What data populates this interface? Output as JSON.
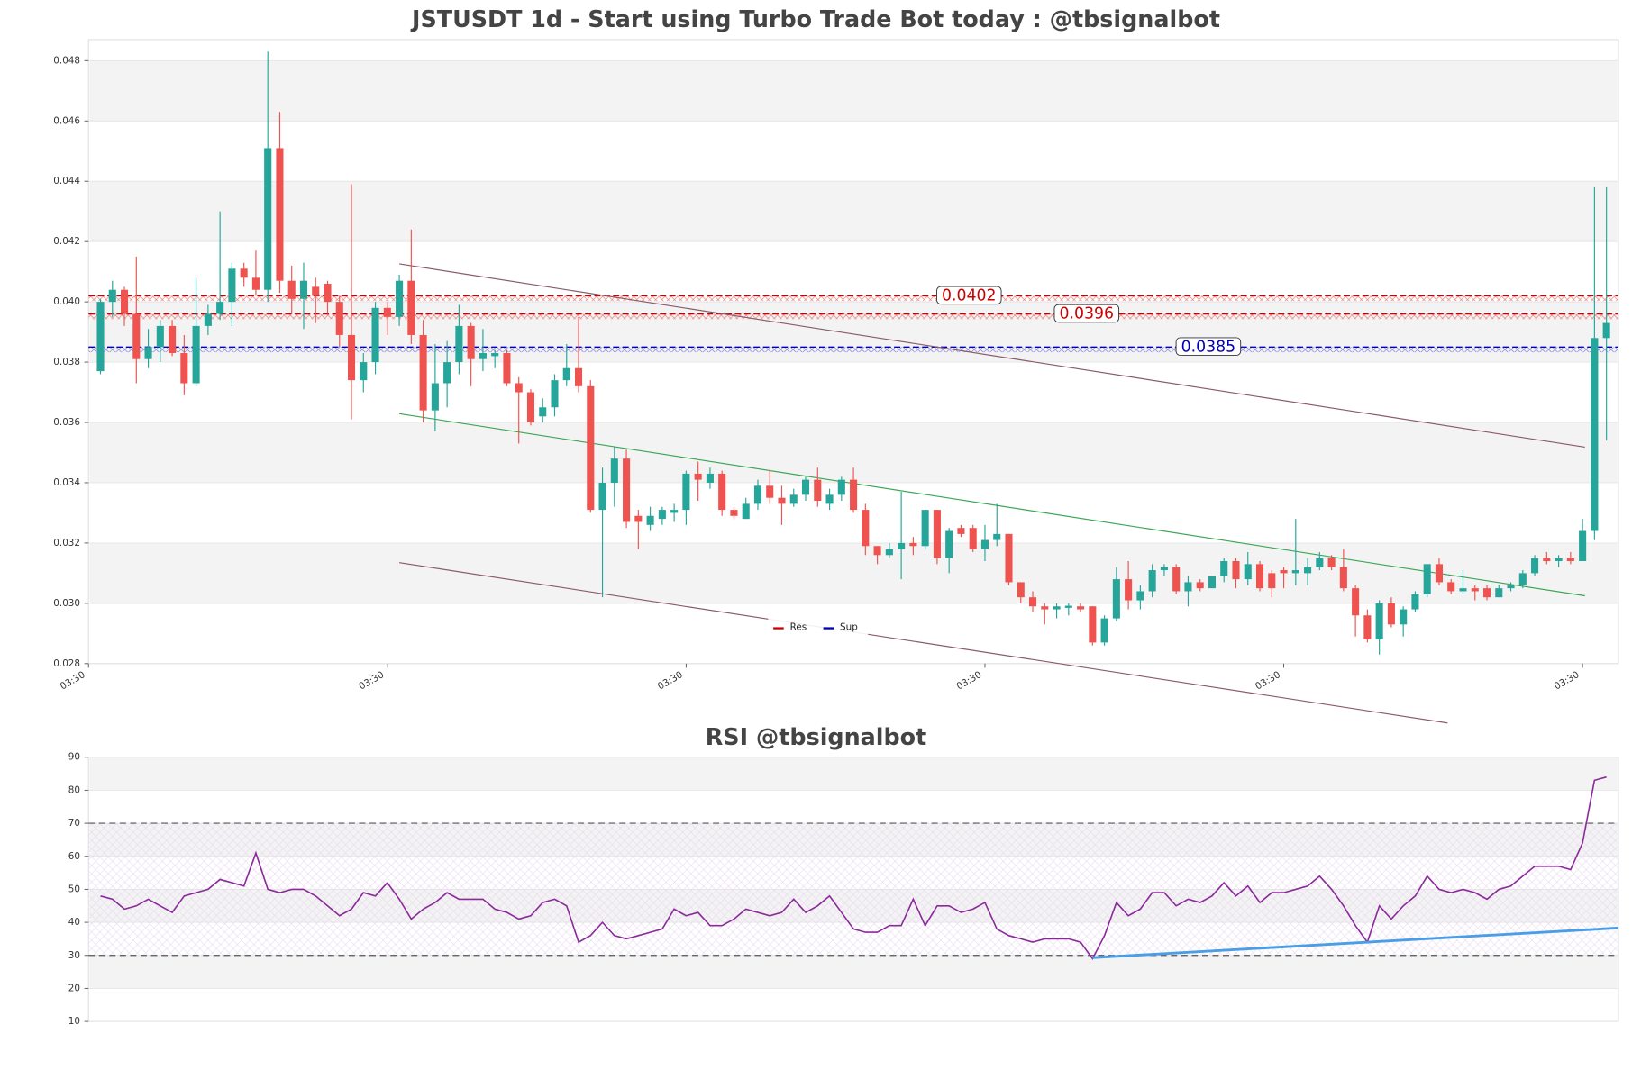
{
  "chart_data": [
    {
      "type": "candlestick",
      "title": "JSTUSDT 1d - Start using Turbo Trade Bot today : @tbsignalbot",
      "colors": {
        "up": "#26a69a",
        "down": "#ef5350"
      },
      "open": [
        0.0377,
        0.04,
        0.0404,
        0.0396,
        0.0381,
        0.0385,
        0.0392,
        0.0383,
        0.0373,
        0.0392,
        0.0396,
        0.04,
        0.0411,
        0.0408,
        0.0404,
        0.0451,
        0.0407,
        0.0401,
        0.0405,
        0.0406,
        0.04,
        0.0389,
        0.0374,
        0.038,
        0.0398,
        0.0395,
        0.0407,
        0.0389,
        0.0364,
        0.0373,
        0.038,
        0.0392,
        0.0381,
        0.0382,
        0.0383,
        0.0373,
        0.037,
        0.0362,
        0.0365,
        0.0374,
        0.0378,
        0.0372,
        0.0331,
        0.034,
        0.0348,
        0.0329,
        0.0326,
        0.0328,
        0.033,
        0.0331,
        0.0343,
        0.034,
        0.0343,
        0.0331,
        0.0328,
        0.0333,
        0.0339,
        0.0335,
        0.0333,
        0.0336,
        0.0341,
        0.0333,
        0.0336,
        0.0341,
        0.0331,
        0.0319,
        0.0316,
        0.0318,
        0.032,
        0.0319,
        0.0331,
        0.0315,
        0.0325,
        0.0325,
        0.0318,
        0.0321,
        0.0323,
        0.0307,
        0.0302,
        0.0299,
        0.0298,
        0.02985,
        0.0299,
        0.0299,
        0.0287,
        0.0295,
        0.0308,
        0.0301,
        0.0304,
        0.0311,
        0.0312,
        0.0304,
        0.0307,
        0.0305,
        0.0309,
        0.0314,
        0.0308,
        0.0313,
        0.031,
        0.0311,
        0.031,
        0.031,
        0.0312,
        0.0315,
        0.0312,
        0.0305,
        0.0296,
        0.0288,
        0.03,
        0.0293,
        0.0298,
        0.0303,
        0.0313,
        0.0307,
        0.0304,
        0.0305,
        0.0305,
        0.0302,
        0.0305,
        0.0306,
        0.031,
        0.0315,
        0.0314,
        0.0315,
        0.0314,
        0.0324,
        0.0388
      ],
      "high": [
        0.0401,
        0.0407,
        0.0405,
        0.0415,
        0.0391,
        0.0394,
        0.0394,
        0.0389,
        0.0408,
        0.0399,
        0.043,
        0.0413,
        0.0413,
        0.0417,
        0.0483,
        0.0463,
        0.0412,
        0.0413,
        0.0408,
        0.0407,
        0.0402,
        0.0439,
        0.0383,
        0.04,
        0.04,
        0.0409,
        0.0424,
        0.0394,
        0.0386,
        0.0387,
        0.0399,
        0.0393,
        0.0391,
        0.0384,
        0.0384,
        0.0375,
        0.0371,
        0.0368,
        0.0376,
        0.0386,
        0.0395,
        0.0374,
        0.0345,
        0.0352,
        0.0351,
        0.0331,
        0.0332,
        0.0332,
        0.0333,
        0.0344,
        0.0347,
        0.0345,
        0.0344,
        0.0332,
        0.0335,
        0.0341,
        0.0344,
        0.0339,
        0.0338,
        0.0342,
        0.0345,
        0.0338,
        0.0342,
        0.0345,
        0.0333,
        0.0319,
        0.032,
        0.0337,
        0.0322,
        0.0331,
        0.0331,
        0.0325,
        0.0326,
        0.0326,
        0.0326,
        0.0333,
        0.0323,
        0.0307,
        0.0304,
        0.03,
        0.03,
        0.03,
        0.03,
        0.0299,
        0.0296,
        0.0312,
        0.0314,
        0.0306,
        0.0313,
        0.0313,
        0.0313,
        0.0309,
        0.0308,
        0.0309,
        0.0315,
        0.0315,
        0.0317,
        0.0314,
        0.0311,
        0.0312,
        0.0328,
        0.0315,
        0.0317,
        0.0316,
        0.0318,
        0.0306,
        0.0298,
        0.0301,
        0.0302,
        0.0299,
        0.0304,
        0.0313,
        0.0315,
        0.0308,
        0.0311,
        0.0306,
        0.0306,
        0.0306,
        0.0307,
        0.0311,
        0.0316,
        0.0317,
        0.0316,
        0.0317,
        0.0328,
        0.0438,
        0.0438
      ],
      "low": [
        0.0376,
        0.0395,
        0.0392,
        0.0373,
        0.0378,
        0.038,
        0.0382,
        0.0369,
        0.0372,
        0.0389,
        0.0394,
        0.0392,
        0.0405,
        0.0402,
        0.04,
        0.0403,
        0.0396,
        0.0391,
        0.0393,
        0.0396,
        0.0385,
        0.0361,
        0.037,
        0.0376,
        0.0389,
        0.0392,
        0.0386,
        0.036,
        0.0357,
        0.0365,
        0.0376,
        0.0372,
        0.0377,
        0.0378,
        0.0372,
        0.0353,
        0.0359,
        0.036,
        0.0362,
        0.0372,
        0.037,
        0.033,
        0.0302,
        0.0332,
        0.0325,
        0.0318,
        0.0324,
        0.0326,
        0.0327,
        0.0326,
        0.0334,
        0.0338,
        0.0329,
        0.0328,
        0.0328,
        0.0331,
        0.0333,
        0.0326,
        0.0332,
        0.0334,
        0.0332,
        0.0331,
        0.0334,
        0.033,
        0.0316,
        0.0313,
        0.0315,
        0.0308,
        0.0316,
        0.0318,
        0.0313,
        0.031,
        0.0322,
        0.0317,
        0.0314,
        0.0319,
        0.0306,
        0.03,
        0.0297,
        0.0293,
        0.0295,
        0.0296,
        0.0297,
        0.0286,
        0.0286,
        0.0294,
        0.0298,
        0.0298,
        0.0302,
        0.0309,
        0.0303,
        0.0299,
        0.0304,
        0.0305,
        0.0307,
        0.0305,
        0.0306,
        0.0304,
        0.0302,
        0.0305,
        0.0306,
        0.0306,
        0.0311,
        0.0311,
        0.0304,
        0.0289,
        0.0287,
        0.0283,
        0.0292,
        0.0289,
        0.0297,
        0.0302,
        0.0306,
        0.0303,
        0.0303,
        0.0301,
        0.0301,
        0.0302,
        0.0304,
        0.0305,
        0.0309,
        0.0313,
        0.0312,
        0.0313,
        0.0314,
        0.0321,
        0.0354
      ],
      "close": [
        0.04,
        0.0404,
        0.0396,
        0.0381,
        0.0385,
        0.0392,
        0.0383,
        0.0373,
        0.0392,
        0.0396,
        0.04,
        0.0411,
        0.0408,
        0.0404,
        0.0451,
        0.0407,
        0.0401,
        0.0407,
        0.0402,
        0.04,
        0.0389,
        0.0374,
        0.038,
        0.0398,
        0.0395,
        0.0407,
        0.0389,
        0.0364,
        0.0373,
        0.038,
        0.0392,
        0.0381,
        0.0383,
        0.0383,
        0.0373,
        0.037,
        0.036,
        0.0365,
        0.0374,
        0.0378,
        0.0372,
        0.0331,
        0.034,
        0.0348,
        0.0327,
        0.0327,
        0.0329,
        0.0331,
        0.0331,
        0.0343,
        0.0341,
        0.0343,
        0.0331,
        0.0329,
        0.0333,
        0.0339,
        0.0335,
        0.0333,
        0.0336,
        0.0341,
        0.0334,
        0.0336,
        0.0341,
        0.0331,
        0.0319,
        0.0316,
        0.0318,
        0.032,
        0.0319,
        0.0331,
        0.0315,
        0.0324,
        0.0323,
        0.0318,
        0.0321,
        0.0323,
        0.0307,
        0.0302,
        0.0299,
        0.0298,
        0.0299,
        0.02992,
        0.0298,
        0.0287,
        0.0295,
        0.0308,
        0.0301,
        0.0304,
        0.0311,
        0.0312,
        0.0304,
        0.0307,
        0.0305,
        0.0309,
        0.0314,
        0.0308,
        0.0313,
        0.0305,
        0.0305,
        0.031,
        0.0311,
        0.0312,
        0.0315,
        0.0312,
        0.0305,
        0.0296,
        0.0288,
        0.03,
        0.0293,
        0.0298,
        0.0303,
        0.0313,
        0.0307,
        0.0304,
        0.0305,
        0.0304,
        0.0302,
        0.0305,
        0.0306,
        0.031,
        0.0315,
        0.0314,
        0.0315,
        0.0314,
        0.0324,
        0.0388,
        0.0393
      ],
      "xlim": [
        -1,
        127
      ],
      "xticks": [
        {
          "value": -1,
          "label": "03:30"
        },
        {
          "value": 24,
          "label": "03:30"
        },
        {
          "value": 49,
          "label": "03:30"
        },
        {
          "value": 74,
          "label": "03:30"
        },
        {
          "value": 99,
          "label": "03:30"
        },
        {
          "value": 124,
          "label": "03:30"
        }
      ],
      "ylim": [
        0.028,
        0.0487
      ],
      "yticks": [
        0.028,
        {
          "value": 0.03,
          "label": "0.030"
        },
        0.032,
        0.034,
        0.036,
        0.038,
        {
          "value": 0.04,
          "label": "0.040"
        },
        0.042,
        0.044,
        0.046,
        0.048
      ],
      "series": [
        {
          "name": "Res",
          "color": "#cc0000",
          "values": [
            0.0402,
            0.0396
          ]
        },
        {
          "name": "Sup",
          "color": "#0000bb",
          "values": [
            0.0385
          ]
        }
      ],
      "legend": "lower center",
      "trendlines": [
        {
          "color": "#8b5a6a",
          "x": [
            25,
            124.2
          ],
          "y": [
            0.04126,
            0.03518
          ]
        },
        {
          "color": "#3aa655",
          "x": [
            25,
            124.2
          ],
          "y": [
            0.03629,
            0.03025
          ]
        },
        {
          "color": "#8b5a6a",
          "x": [
            25,
            112.7
          ],
          "y": [
            0.03135,
            0.02603
          ]
        }
      ]
    },
    {
      "type": "line",
      "title": "RSI @tbsignalbot",
      "color": "#8b2a9b",
      "values": [
        48,
        47,
        44,
        45,
        47,
        45,
        43,
        48,
        49,
        50,
        53,
        52,
        51,
        61,
        50,
        49,
        50,
        50,
        48,
        45,
        42,
        44,
        49,
        48,
        52,
        47,
        41,
        44,
        46,
        49,
        47,
        47,
        47,
        44,
        43,
        41,
        42,
        46,
        47,
        45,
        34,
        36,
        40,
        36,
        35,
        36,
        37,
        38,
        44,
        42,
        43,
        39,
        39,
        41,
        44,
        43,
        42,
        43,
        47,
        43,
        45,
        48,
        43,
        38,
        37,
        37,
        39,
        39,
        47,
        39,
        45,
        45,
        43,
        44,
        46,
        38,
        36,
        35,
        34,
        35,
        35,
        35,
        34,
        29,
        36,
        46,
        42,
        44,
        49,
        49,
        45,
        47,
        46,
        48,
        52,
        48,
        51,
        46,
        49,
        49,
        50,
        51,
        54,
        50,
        45,
        39,
        34,
        45,
        41,
        45,
        48,
        54,
        50,
        49,
        50,
        49,
        47,
        50,
        51,
        54,
        57,
        57,
        57,
        56,
        64,
        83,
        84
      ],
      "xlim": [
        -1,
        127
      ],
      "ylim": [
        10,
        90
      ],
      "yticks": [
        10,
        20,
        30,
        40,
        50,
        60,
        70,
        80,
        90
      ],
      "hlines": [
        70,
        30
      ],
      "trendlines": [
        {
          "color": "#4a9ee8",
          "x": [
            83,
            127
          ],
          "y": [
            29.3,
            38.3
          ]
        }
      ]
    }
  ]
}
